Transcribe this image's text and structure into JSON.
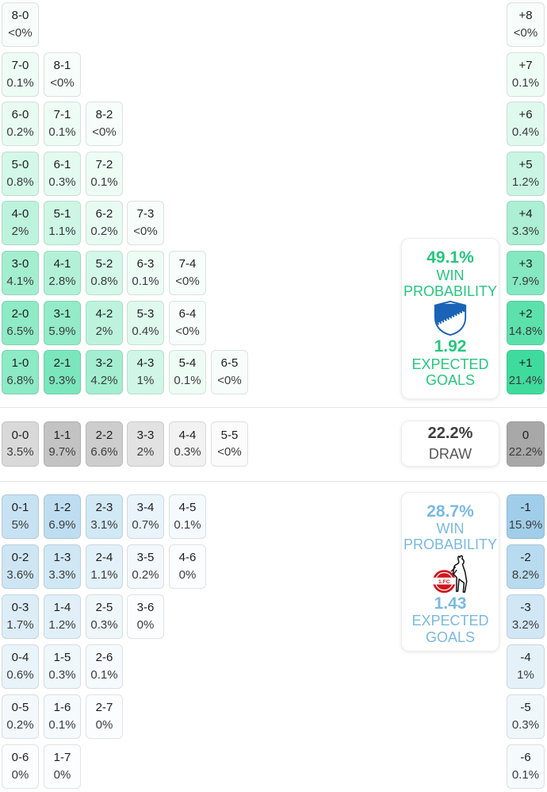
{
  "colors": {
    "home_cell_base": "#3FDB9D",
    "draw_cell_base": "#A8A8A8",
    "away_cell_base": "#A0CEEA",
    "home_text": "#25C77E",
    "away_text": "#7AB9E2",
    "draw_num_text": "#3F3F3F",
    "draw_label_text": "#565656"
  },
  "panels": {
    "home": {
      "win_probability": "49.1%",
      "win_label": "WIN PROBABILITY",
      "expected_goals": "1.92",
      "eg_label": "EXPECTED GOALS"
    },
    "draw": {
      "probability": "22.2%",
      "label": "DRAW"
    },
    "away": {
      "win_probability": "28.7%",
      "win_label": "WIN PROBABILITY",
      "expected_goals": "1.43",
      "eg_label": "EXPECTED GOALS"
    }
  },
  "chart_data": {
    "type": "heatmap",
    "home_score_rows": [
      [
        {
          "score": "8-0",
          "pct": "<0%",
          "v": 0
        }
      ],
      [
        {
          "score": "7-0",
          "pct": "0.1%",
          "v": 0.1
        },
        {
          "score": "8-1",
          "pct": "<0%",
          "v": 0
        }
      ],
      [
        {
          "score": "6-0",
          "pct": "0.2%",
          "v": 0.2
        },
        {
          "score": "7-1",
          "pct": "0.1%",
          "v": 0.1
        },
        {
          "score": "8-2",
          "pct": "<0%",
          "v": 0
        }
      ],
      [
        {
          "score": "5-0",
          "pct": "0.8%",
          "v": 0.8
        },
        {
          "score": "6-1",
          "pct": "0.3%",
          "v": 0.3
        },
        {
          "score": "7-2",
          "pct": "0.1%",
          "v": 0.1
        }
      ],
      [
        {
          "score": "4-0",
          "pct": "2%",
          "v": 2
        },
        {
          "score": "5-1",
          "pct": "1.1%",
          "v": 1.1
        },
        {
          "score": "6-2",
          "pct": "0.2%",
          "v": 0.2
        },
        {
          "score": "7-3",
          "pct": "<0%",
          "v": 0
        }
      ],
      [
        {
          "score": "3-0",
          "pct": "4.1%",
          "v": 4.1
        },
        {
          "score": "4-1",
          "pct": "2.8%",
          "v": 2.8
        },
        {
          "score": "5-2",
          "pct": "0.8%",
          "v": 0.8
        },
        {
          "score": "6-3",
          "pct": "0.1%",
          "v": 0.1
        },
        {
          "score": "7-4",
          "pct": "<0%",
          "v": 0
        }
      ],
      [
        {
          "score": "2-0",
          "pct": "6.5%",
          "v": 6.5
        },
        {
          "score": "3-1",
          "pct": "5.9%",
          "v": 5.9
        },
        {
          "score": "4-2",
          "pct": "2%",
          "v": 2
        },
        {
          "score": "5-3",
          "pct": "0.4%",
          "v": 0.4
        },
        {
          "score": "6-4",
          "pct": "<0%",
          "v": 0
        }
      ],
      [
        {
          "score": "1-0",
          "pct": "6.8%",
          "v": 6.8
        },
        {
          "score": "2-1",
          "pct": "9.3%",
          "v": 9.3
        },
        {
          "score": "3-2",
          "pct": "4.2%",
          "v": 4.2
        },
        {
          "score": "4-3",
          "pct": "1%",
          "v": 1
        },
        {
          "score": "5-4",
          "pct": "0.1%",
          "v": 0.1
        },
        {
          "score": "6-5",
          "pct": "<0%",
          "v": 0
        }
      ]
    ],
    "draw_row": [
      {
        "score": "0-0",
        "pct": "3.5%",
        "v": 3.5
      },
      {
        "score": "1-1",
        "pct": "9.7%",
        "v": 9.7
      },
      {
        "score": "2-2",
        "pct": "6.6%",
        "v": 6.6
      },
      {
        "score": "3-3",
        "pct": "2%",
        "v": 2
      },
      {
        "score": "4-4",
        "pct": "0.3%",
        "v": 0.3
      },
      {
        "score": "5-5",
        "pct": "<0%",
        "v": 0
      }
    ],
    "away_score_rows": [
      [
        {
          "score": "0-1",
          "pct": "5%",
          "v": 5
        },
        {
          "score": "1-2",
          "pct": "6.9%",
          "v": 6.9
        },
        {
          "score": "2-3",
          "pct": "3.1%",
          "v": 3.1
        },
        {
          "score": "3-4",
          "pct": "0.7%",
          "v": 0.7
        },
        {
          "score": "4-5",
          "pct": "0.1%",
          "v": 0.1
        }
      ],
      [
        {
          "score": "0-2",
          "pct": "3.6%",
          "v": 3.6
        },
        {
          "score": "1-3",
          "pct": "3.3%",
          "v": 3.3
        },
        {
          "score": "2-4",
          "pct": "1.1%",
          "v": 1.1
        },
        {
          "score": "3-5",
          "pct": "0.2%",
          "v": 0.2
        },
        {
          "score": "4-6",
          "pct": "0%",
          "v": 0
        }
      ],
      [
        {
          "score": "0-3",
          "pct": "1.7%",
          "v": 1.7
        },
        {
          "score": "1-4",
          "pct": "1.2%",
          "v": 1.2
        },
        {
          "score": "2-5",
          "pct": "0.3%",
          "v": 0.3
        },
        {
          "score": "3-6",
          "pct": "0%",
          "v": 0
        }
      ],
      [
        {
          "score": "0-4",
          "pct": "0.6%",
          "v": 0.6
        },
        {
          "score": "1-5",
          "pct": "0.3%",
          "v": 0.3
        },
        {
          "score": "2-6",
          "pct": "0.1%",
          "v": 0.1
        }
      ],
      [
        {
          "score": "0-5",
          "pct": "0.2%",
          "v": 0.2
        },
        {
          "score": "1-6",
          "pct": "0.1%",
          "v": 0.1
        },
        {
          "score": "2-7",
          "pct": "0%",
          "v": 0
        }
      ],
      [
        {
          "score": "0-6",
          "pct": "0%",
          "v": 0
        },
        {
          "score": "1-7",
          "pct": "0%",
          "v": 0
        }
      ]
    ],
    "goal_diff": {
      "home": [
        {
          "diff": "+8",
          "pct": "<0%",
          "v": 0
        },
        {
          "diff": "+7",
          "pct": "0.1%",
          "v": 0.1
        },
        {
          "diff": "+6",
          "pct": "0.4%",
          "v": 0.4
        },
        {
          "diff": "+5",
          "pct": "1.2%",
          "v": 1.2
        },
        {
          "diff": "+4",
          "pct": "3.3%",
          "v": 3.3
        },
        {
          "diff": "+3",
          "pct": "7.9%",
          "v": 7.9
        },
        {
          "diff": "+2",
          "pct": "14.8%",
          "v": 14.8
        },
        {
          "diff": "+1",
          "pct": "21.4%",
          "v": 21.4
        }
      ],
      "draw": {
        "diff": "0",
        "pct": "22.2%",
        "v": 22.2
      },
      "away": [
        {
          "diff": "-1",
          "pct": "15.9%",
          "v": 15.9
        },
        {
          "diff": "-2",
          "pct": "8.2%",
          "v": 8.2
        },
        {
          "diff": "-3",
          "pct": "3.2%",
          "v": 3.2
        },
        {
          "diff": "-4",
          "pct": "1%",
          "v": 1
        },
        {
          "diff": "-5",
          "pct": "0.3%",
          "v": 0.3
        },
        {
          "diff": "-6",
          "pct": "0.1%",
          "v": 0.1
        }
      ]
    }
  }
}
